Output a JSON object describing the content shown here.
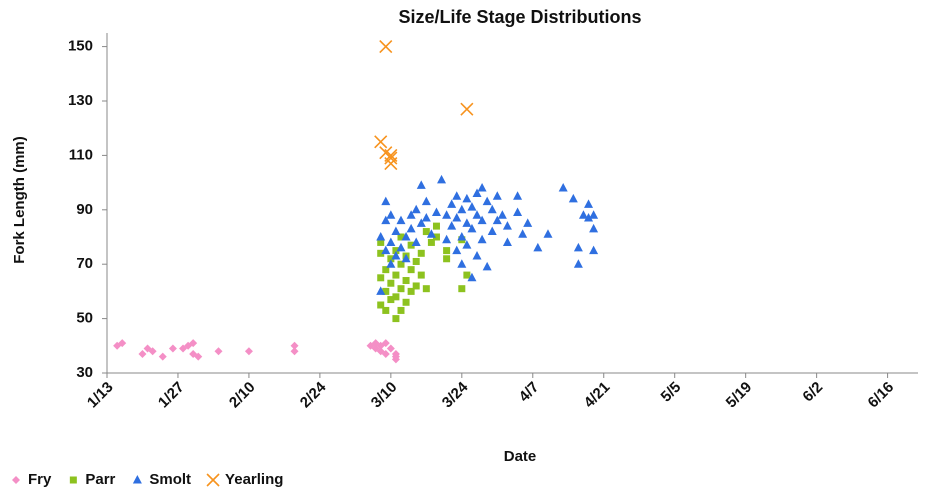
{
  "chart_data": {
    "type": "scatter",
    "title": "Size/Life Stage Distributions",
    "x_label": "Date",
    "y_label": "Fork Length (mm)",
    "xlim": [
      "1/13",
      "6/22"
    ],
    "xticks": [
      "1/13",
      "1/27",
      "2/10",
      "2/24",
      "3/10",
      "3/24",
      "4/7",
      "4/21",
      "5/5",
      "5/19",
      "6/2",
      "6/16"
    ],
    "ylim": [
      30,
      155
    ],
    "yticks": [
      30,
      50,
      70,
      90,
      110,
      130,
      150
    ],
    "legend": "bottom-left",
    "series": [
      {
        "name": "Fry",
        "color": "#f48fc6",
        "marker": "diamond",
        "x": [
          "1/15",
          "1/16",
          "1/20",
          "1/21",
          "1/22",
          "1/24",
          "1/26",
          "1/28",
          "1/29",
          "1/30",
          "1/30",
          "1/31",
          "2/4",
          "2/10",
          "2/19",
          "2/19",
          "3/6",
          "3/7",
          "3/7",
          "3/8",
          "3/8",
          "3/9",
          "3/9",
          "3/10",
          "3/11",
          "3/11",
          "3/11"
        ],
        "values": [
          40,
          41,
          37,
          39,
          38,
          36,
          39,
          39,
          40,
          41,
          37,
          36,
          38,
          38,
          40,
          38,
          40,
          39,
          41,
          38,
          40,
          41,
          37,
          39,
          37,
          35,
          36
        ]
      },
      {
        "name": "Parr",
        "color": "#8dc21f",
        "marker": "square",
        "x": [
          "3/8",
          "3/8",
          "3/8",
          "3/8",
          "3/9",
          "3/9",
          "3/9",
          "3/10",
          "3/10",
          "3/10",
          "3/11",
          "3/11",
          "3/11",
          "3/11",
          "3/12",
          "3/12",
          "3/12",
          "3/12",
          "3/13",
          "3/13",
          "3/13",
          "3/14",
          "3/14",
          "3/14",
          "3/15",
          "3/15",
          "3/16",
          "3/16",
          "3/17",
          "3/17",
          "3/18",
          "3/19",
          "3/19",
          "3/21",
          "3/21",
          "3/24",
          "3/25",
          "3/24"
        ],
        "values": [
          55,
          65,
          74,
          78,
          53,
          60,
          68,
          57,
          63,
          72,
          50,
          58,
          66,
          75,
          53,
          61,
          70,
          80,
          56,
          64,
          73,
          60,
          68,
          77,
          62,
          71,
          74,
          66,
          82,
          61,
          78,
          84,
          80,
          72,
          75,
          61,
          66,
          79
        ]
      },
      {
        "name": "Smolt",
        "color": "#2f6fe0",
        "marker": "triangle",
        "x": [
          "3/8",
          "3/8",
          "3/9",
          "3/9",
          "3/9",
          "3/10",
          "3/10",
          "3/10",
          "3/11",
          "3/11",
          "3/12",
          "3/12",
          "3/13",
          "3/13",
          "3/14",
          "3/14",
          "3/15",
          "3/15",
          "3/16",
          "3/16",
          "3/17",
          "3/17",
          "3/18",
          "3/19",
          "3/20",
          "3/21",
          "3/21",
          "3/22",
          "3/22",
          "3/23",
          "3/23",
          "3/23",
          "3/24",
          "3/24",
          "3/24",
          "3/25",
          "3/25",
          "3/25",
          "3/26",
          "3/26",
          "3/26",
          "3/27",
          "3/27",
          "3/27",
          "3/28",
          "3/28",
          "3/28",
          "3/29",
          "3/29",
          "3/30",
          "3/30",
          "3/31",
          "3/31",
          "4/1",
          "4/2",
          "4/2",
          "4/4",
          "4/4",
          "4/5",
          "4/6",
          "4/8",
          "4/10",
          "4/13",
          "4/15",
          "4/16",
          "4/16",
          "4/17",
          "4/18",
          "4/18",
          "4/19",
          "4/19",
          "4/19"
        ],
        "values": [
          80,
          60,
          93,
          86,
          75,
          88,
          70,
          78,
          82,
          73,
          76,
          86,
          80,
          72,
          88,
          83,
          90,
          78,
          85,
          99,
          87,
          93,
          81,
          89,
          101,
          88,
          79,
          92,
          84,
          95,
          75,
          87,
          90,
          80,
          70,
          94,
          85,
          77,
          91,
          65,
          83,
          96,
          88,
          73,
          98,
          86,
          79,
          93,
          69,
          90,
          82,
          95,
          86,
          88,
          78,
          84,
          95,
          89,
          81,
          85,
          76,
          81,
          98,
          94,
          76,
          70,
          88,
          92,
          87,
          83,
          75,
          88
        ]
      },
      {
        "name": "Yearling",
        "color": "#f7931e",
        "marker": "x",
        "x": [
          "3/9",
          "3/8",
          "3/9",
          "3/10",
          "3/10",
          "3/10",
          "3/25"
        ],
        "values": [
          150,
          115,
          111,
          110,
          107,
          109,
          127
        ]
      }
    ]
  }
}
